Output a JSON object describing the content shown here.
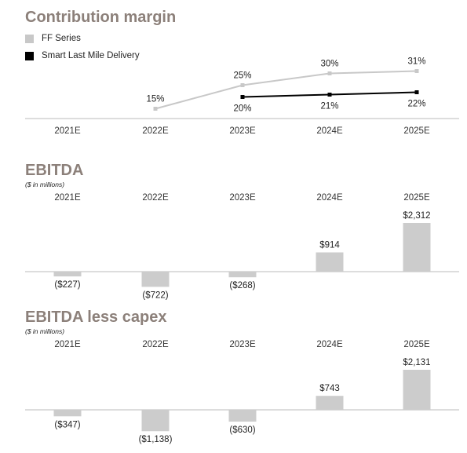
{
  "colors": {
    "title": "#8c807a",
    "ff": "#c8c8c8",
    "slmd": "#000000",
    "bar": "#cccccc",
    "axis": "#bbbbbb"
  },
  "chart_data": [
    {
      "type": "line",
      "title": "Contribution margin",
      "categories": [
        "2021E",
        "2022E",
        "2023E",
        "2024E",
        "2025E"
      ],
      "series": [
        {
          "name": "FF Series",
          "values": [
            null,
            15,
            25,
            30,
            31
          ],
          "labels": [
            "",
            "15%",
            "25%",
            "30%",
            "31%"
          ]
        },
        {
          "name": "Smart Last Mile Delivery",
          "values": [
            null,
            null,
            20,
            21,
            22
          ],
          "labels": [
            "",
            "",
            "20%",
            "21%",
            "22%"
          ]
        }
      ],
      "unit": "%",
      "legend": "top-left"
    },
    {
      "type": "bar",
      "title": "EBITDA",
      "subtitle": "($ in millions)",
      "categories": [
        "2021E",
        "2022E",
        "2023E",
        "2024E",
        "2025E"
      ],
      "values": [
        -227,
        -722,
        -268,
        914,
        2312
      ],
      "labels": [
        "($227)",
        "($722)",
        "($268)",
        "$914",
        "$2,312"
      ]
    },
    {
      "type": "bar",
      "title": "EBITDA less capex",
      "subtitle": "($ in millions)",
      "categories": [
        "2021E",
        "2022E",
        "2023E",
        "2024E",
        "2025E"
      ],
      "values": [
        -347,
        -1138,
        -630,
        743,
        2131
      ],
      "labels": [
        "($347)",
        "($1,138)",
        "($630)",
        "$743",
        "$2,131"
      ]
    }
  ]
}
